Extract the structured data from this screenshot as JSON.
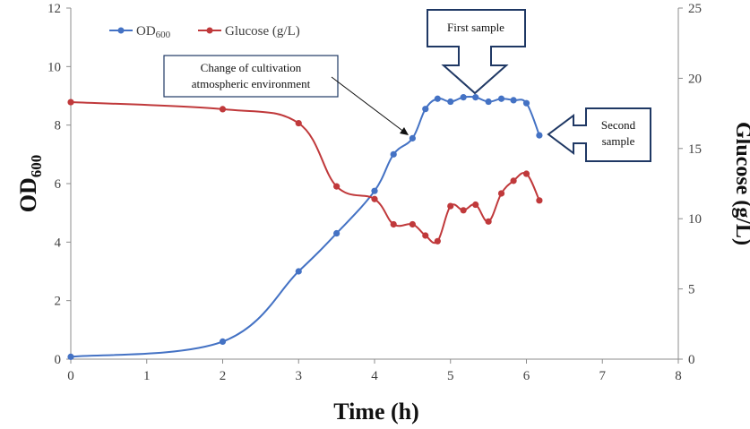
{
  "chart_data": {
    "type": "line",
    "xlabel": "Time (h)",
    "ylabel": "OD",
    "ylabel_sub": "600",
    "y2label": "Glucose (g/L)",
    "xlim": [
      0,
      8
    ],
    "ylim": [
      0,
      12
    ],
    "y2lim": [
      0,
      25
    ],
    "xticks": [
      0,
      1,
      2,
      3,
      4,
      5,
      6,
      7,
      8
    ],
    "yticks": [
      0,
      2,
      4,
      6,
      8,
      10,
      12
    ],
    "y2ticks": [
      0,
      5,
      10,
      15,
      20,
      25
    ],
    "colors": {
      "od": "#4472c4",
      "glucose": "#c0393b",
      "callout_border": "#1f3864",
      "axis": "#8c8c8c"
    },
    "series": [
      {
        "name": "OD",
        "name_sub": "600",
        "axis": "left",
        "x": [
          0,
          2,
          3,
          3.5,
          4,
          4.25,
          4.5,
          4.67,
          4.83,
          5,
          5.17,
          5.33,
          5.5,
          5.67,
          5.83,
          6,
          6.17
        ],
        "values": [
          0.08,
          0.6,
          3.0,
          4.3,
          5.75,
          7.0,
          7.55,
          8.55,
          8.9,
          8.8,
          8.95,
          8.95,
          8.8,
          8.9,
          8.85,
          8.75,
          7.65
        ]
      },
      {
        "name": "Glucose (g/L)",
        "axis": "right",
        "x": [
          0,
          2,
          3,
          3.5,
          4,
          4.25,
          4.5,
          4.67,
          4.83,
          5,
          5.17,
          5.33,
          5.5,
          5.67,
          5.83,
          6,
          6.17
        ],
        "values": [
          18.3,
          17.8,
          16.8,
          12.3,
          11.4,
          9.6,
          9.6,
          8.8,
          8.4,
          10.9,
          10.6,
          11.0,
          9.8,
          11.8,
          12.7,
          13.2,
          11.3
        ]
      }
    ],
    "annotations": [
      {
        "id": "env",
        "lines": [
          "Change of cultivation",
          "atmospheric environment"
        ]
      },
      {
        "id": "first",
        "lines": [
          "First sample"
        ]
      },
      {
        "id": "second",
        "lines": [
          "Second",
          "sample"
        ]
      }
    ]
  }
}
